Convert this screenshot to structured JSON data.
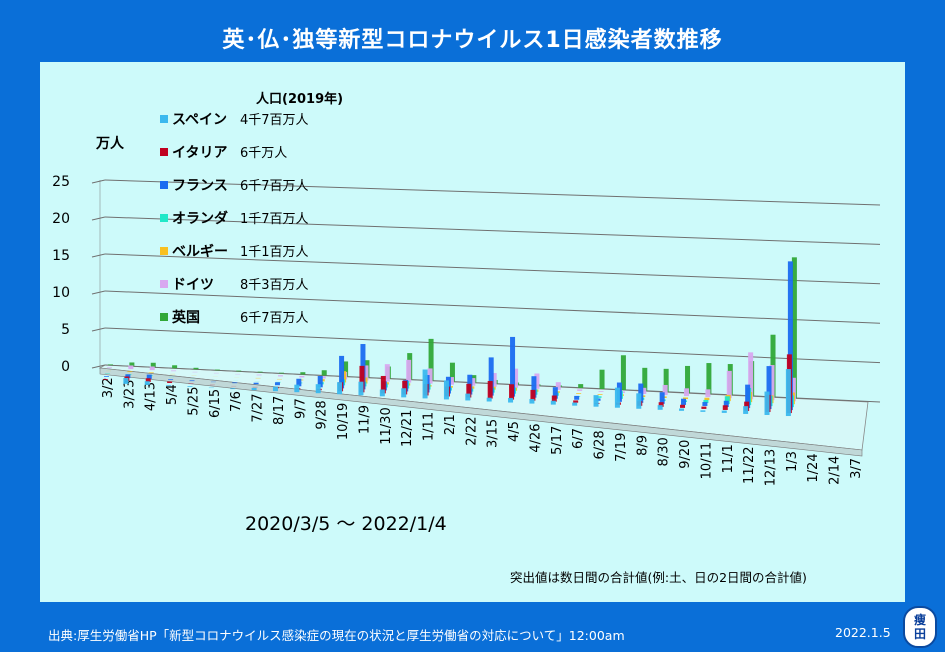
{
  "title": "英･仏･独等新型コロナウイルス1日感染者数推移",
  "legend_header": "人口(2019年)",
  "unit_label": "万人",
  "date_range": "2020/3/5 ～ 2022/1/4",
  "note": "突出値は数日間の合計値(例:土、日の2日間の合計値)",
  "source": "出典:厚生労働省HP「新型コロナウイルス感染症の現在の状況と厚生労働省の対応について」12:00am",
  "published": "2022.1.5",
  "logo": [
    "痩",
    "田"
  ],
  "colors": {
    "panel": "#cdfafa",
    "background": "#0a6fd8"
  },
  "chart_data": {
    "type": "bar",
    "style": "3d-stacked-depth",
    "title": "英･仏･独等新型コロナウイルス1日感染者数推移",
    "ylabel": "万人",
    "ylim": [
      0,
      25
    ],
    "yticks": [
      0,
      5,
      10,
      15,
      20,
      25
    ],
    "grid": true,
    "legend_placement": "top-left",
    "x_ticks": [
      "3/2",
      "3/23",
      "4/13",
      "5/4",
      "5/25",
      "6/15",
      "7/6",
      "7/27",
      "8/17",
      "9/7",
      "9/28",
      "10/19",
      "11/9",
      "11/30",
      "12/21",
      "1/11",
      "2/1",
      "2/22",
      "3/15",
      "4/5",
      "4/26",
      "5/17",
      "6/7",
      "6/28",
      "7/19",
      "8/9",
      "8/30",
      "9/20",
      "10/11",
      "11/1",
      "11/22",
      "12/13",
      "1/3",
      "1/24",
      "2/14",
      "3/7"
    ],
    "series": [
      {
        "name": "スペイン",
        "population": "4千7百万人",
        "color": "#3ab8ee",
        "x": [
          "3/2",
          "3/23",
          "4/13",
          "5/4",
          "5/25",
          "6/15",
          "7/6",
          "7/27",
          "8/17",
          "9/7",
          "9/28",
          "10/19",
          "11/9",
          "11/30",
          "12/21",
          "1/11",
          "2/1",
          "2/22",
          "3/15",
          "4/5",
          "4/26",
          "5/17",
          "6/7",
          "6/28",
          "7/19",
          "8/9",
          "8/30",
          "9/20",
          "10/11",
          "11/1",
          "11/22",
          "12/13",
          "1/3"
        ],
        "values": [
          0,
          0.8,
          0.5,
          0.1,
          0.1,
          0.05,
          0.1,
          0.3,
          0.6,
          1.0,
          1.2,
          1.6,
          1.8,
          0.9,
          1.2,
          3.8,
          2.5,
          0.9,
          0.5,
          0.6,
          0.6,
          0.5,
          0.4,
          1.5,
          2.6,
          2.0,
          0.6,
          0.3,
          0.2,
          0.3,
          1.0,
          3.0,
          6.0
        ]
      },
      {
        "name": "イタリア",
        "population": "6千万人",
        "color": "#c00020",
        "x": [
          "3/2",
          "3/23",
          "4/13",
          "5/4",
          "5/25",
          "6/15",
          "7/6",
          "7/27",
          "8/17",
          "9/7",
          "9/28",
          "10/19",
          "11/9",
          "11/30",
          "12/21",
          "1/11",
          "2/1",
          "2/22",
          "3/15",
          "4/5",
          "4/26",
          "5/17",
          "6/7",
          "6/28",
          "7/19",
          "8/9",
          "8/30",
          "9/20",
          "10/11",
          "11/1",
          "11/22",
          "12/13",
          "1/3"
        ],
        "values": [
          0.1,
          0.6,
          0.5,
          0.2,
          0.05,
          0.03,
          0.02,
          0.03,
          0.1,
          0.15,
          0.2,
          1.2,
          3.5,
          2.3,
          1.8,
          1.5,
          1.3,
          1.8,
          2.3,
          2.0,
          1.4,
          0.8,
          0.3,
          0.1,
          0.3,
          0.6,
          0.6,
          0.4,
          0.3,
          0.6,
          1.2,
          2.2,
          7.5
        ]
      },
      {
        "name": "フランス",
        "population": "6千7百万人",
        "color": "#1a6cf0",
        "x": [
          "3/2",
          "3/23",
          "4/13",
          "5/4",
          "5/25",
          "6/15",
          "7/6",
          "7/27",
          "8/17",
          "9/7",
          "9/28",
          "10/19",
          "11/9",
          "11/30",
          "12/21",
          "1/11",
          "2/1",
          "2/22",
          "3/15",
          "4/5",
          "4/26",
          "5/17",
          "6/7",
          "6/28",
          "7/19",
          "8/9",
          "8/30",
          "9/20",
          "10/11",
          "11/1",
          "11/22",
          "12/13",
          "1/3"
        ],
        "values": [
          0.1,
          0.5,
          0.6,
          0.1,
          0.1,
          0.05,
          0.1,
          0.2,
          0.4,
          1.0,
          1.5,
          4.3,
          6.0,
          1.2,
          1.5,
          2.3,
          2.2,
          2.6,
          5.0,
          7.8,
          2.8,
          1.5,
          0.5,
          0.3,
          2.5,
          2.5,
          1.5,
          0.8,
          0.5,
          0.8,
          3.0,
          5.5,
          19.0
        ]
      },
      {
        "name": "オランダ",
        "population": "1千7百万人",
        "color": "#20e8c8",
        "x": [
          "3/2",
          "3/23",
          "4/13",
          "5/4",
          "5/25",
          "6/15",
          "7/6",
          "7/27",
          "8/17",
          "9/7",
          "9/28",
          "10/19",
          "11/9",
          "11/30",
          "12/21",
          "1/11",
          "2/1",
          "2/22",
          "3/15",
          "4/5",
          "4/26",
          "5/17",
          "6/7",
          "6/28",
          "7/19",
          "8/9",
          "8/30",
          "9/20",
          "10/11",
          "11/1",
          "11/22",
          "12/13",
          "1/3"
        ],
        "values": [
          0.05,
          0.1,
          0.1,
          0.03,
          0.02,
          0.01,
          0.01,
          0.02,
          0.05,
          0.1,
          0.3,
          0.8,
          0.6,
          0.5,
          1.0,
          0.8,
          0.4,
          0.4,
          0.6,
          0.8,
          0.7,
          0.4,
          0.1,
          0.2,
          1.0,
          0.3,
          0.2,
          0.2,
          0.4,
          1.0,
          2.2,
          1.3,
          1.5
        ]
      },
      {
        "name": "ベルギー",
        "population": "1千1百万人",
        "color": "#f8c020",
        "x": [
          "3/2",
          "3/23",
          "4/13",
          "5/4",
          "5/25",
          "6/15",
          "7/6",
          "7/27",
          "8/17",
          "9/7",
          "9/28",
          "10/19",
          "11/9",
          "11/30",
          "12/21",
          "1/11",
          "2/1",
          "2/22",
          "3/15",
          "4/5",
          "4/26",
          "5/17",
          "6/7",
          "6/28",
          "7/19",
          "8/9",
          "8/30",
          "9/20",
          "10/11",
          "11/1",
          "11/22",
          "12/13",
          "1/3"
        ],
        "values": [
          0.02,
          0.1,
          0.1,
          0.03,
          0.02,
          0.01,
          0.01,
          0.05,
          0.05,
          0.1,
          0.3,
          1.5,
          0.8,
          0.3,
          0.3,
          0.2,
          0.2,
          0.3,
          0.4,
          0.4,
          0.3,
          0.2,
          0.1,
          0.1,
          0.2,
          0.2,
          0.2,
          0.2,
          0.3,
          0.8,
          1.3,
          1.0,
          1.5
        ]
      },
      {
        "name": "ドイツ",
        "population": "8千3百万人",
        "color": "#d8a8f0",
        "x": [
          "3/2",
          "3/23",
          "4/13",
          "5/4",
          "5/25",
          "6/15",
          "7/6",
          "7/27",
          "8/17",
          "9/7",
          "9/28",
          "10/19",
          "11/9",
          "11/30",
          "12/21",
          "1/11",
          "2/1",
          "2/22",
          "3/15",
          "4/5",
          "4/26",
          "5/17",
          "6/7",
          "6/28",
          "7/19",
          "8/9",
          "8/30",
          "9/20",
          "10/11",
          "11/1",
          "11/22",
          "12/13",
          "1/3"
        ],
        "values": [
          0.1,
          0.5,
          0.5,
          0.1,
          0.05,
          0.05,
          0.05,
          0.1,
          0.15,
          0.2,
          0.3,
          1.0,
          2.0,
          2.3,
          3.0,
          2.0,
          1.0,
          1.0,
          1.8,
          2.5,
          2.0,
          1.0,
          0.2,
          0.1,
          0.2,
          0.8,
          1.3,
          1.0,
          1.0,
          3.5,
          6.0,
          4.5,
          3.0
        ]
      },
      {
        "name": "英国",
        "population": "6千7百万人",
        "color": "#30a838",
        "x": [
          "3/2",
          "3/23",
          "4/13",
          "5/4",
          "5/25",
          "6/15",
          "7/6",
          "7/27",
          "8/17",
          "9/7",
          "9/28",
          "10/19",
          "11/9",
          "11/30",
          "12/21",
          "1/11",
          "2/1",
          "2/22",
          "3/15",
          "4/5",
          "4/26",
          "5/17",
          "6/7",
          "6/28",
          "7/19",
          "8/9",
          "8/30",
          "9/20",
          "10/11",
          "11/1",
          "11/22",
          "12/13",
          "1/3"
        ],
        "values": [
          0.1,
          0.5,
          0.6,
          0.4,
          0.2,
          0.1,
          0.1,
          0.1,
          0.1,
          0.3,
          0.7,
          2.0,
          2.3,
          1.6,
          3.5,
          5.5,
          2.5,
          1.0,
          0.5,
          0.3,
          0.2,
          0.2,
          0.5,
          2.5,
          4.5,
          3.0,
          3.0,
          3.5,
          4.0,
          4.0,
          4.5,
          8.0,
          18.0
        ]
      }
    ]
  }
}
